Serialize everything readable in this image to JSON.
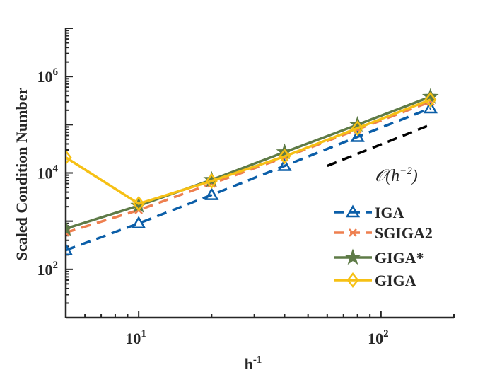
{
  "chart_data": {
    "type": "line",
    "xscale": "log",
    "yscale": "log",
    "xlim": [
      5,
      200
    ],
    "ylim": [
      10,
      10000000
    ],
    "xticks": [
      {
        "value": 10,
        "base": "10",
        "exp": "1"
      },
      {
        "value": 100,
        "base": "10",
        "exp": "2"
      }
    ],
    "yticks": [
      {
        "value": 100,
        "base": "10",
        "exp": "2"
      },
      {
        "value": 10000,
        "base": "10",
        "exp": "4"
      },
      {
        "value": 1000000,
        "base": "10",
        "exp": "6"
      }
    ],
    "xlabel": {
      "base": "h",
      "sup": "-1"
    },
    "ylabel": "Scaled Condition Number",
    "legend_position": "lower-right",
    "series": [
      {
        "name": "IGA",
        "color": "#0b5ea8",
        "dash": "dashed",
        "marker": "triangle",
        "x": [
          5,
          10,
          20,
          40,
          80,
          160
        ],
        "y": [
          250,
          900,
          3500,
          14000,
          56000,
          220000
        ]
      },
      {
        "name": "SGIGA2",
        "color": "#ee7f4f",
        "dash": "dashed",
        "marker": "x",
        "x": [
          5,
          10,
          20,
          40,
          80,
          160
        ],
        "y": [
          580,
          1700,
          6000,
          21000,
          80000,
          300000
        ]
      },
      {
        "name": "GIGA*",
        "color": "#5e7b47",
        "dash": "solid",
        "marker": "star",
        "x": [
          5,
          10,
          20,
          40,
          80,
          160
        ],
        "y": [
          700,
          2100,
          7200,
          27000,
          100000,
          380000
        ]
      },
      {
        "name": "GIGA",
        "color": "#f6c014",
        "dash": "solid",
        "marker": "diamond",
        "x": [
          5,
          10,
          20,
          40,
          80,
          160
        ],
        "y": [
          21000,
          2300,
          6800,
          22000,
          85000,
          330000
        ]
      }
    ],
    "reference_line": {
      "label": "O(h^-2)",
      "label_parts": {
        "O": "𝒪",
        "open": "(",
        "h": "h",
        "sup": "−2",
        "close": ")"
      },
      "color": "#000000",
      "dash": "dashed",
      "x": [
        60,
        160
      ],
      "y": [
        14000,
        100000
      ]
    }
  }
}
